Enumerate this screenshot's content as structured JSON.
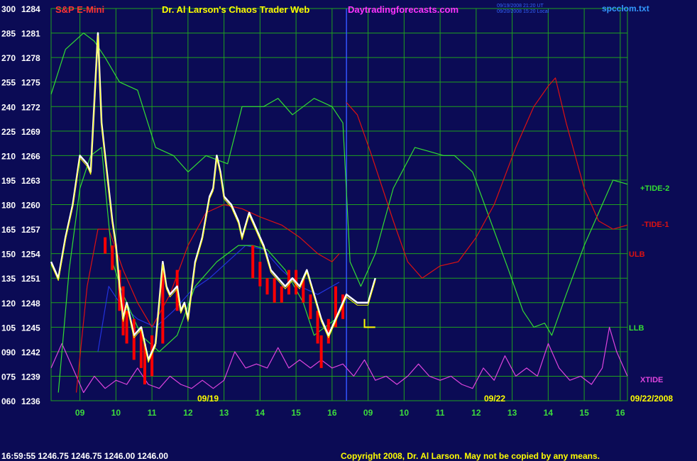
{
  "header": {
    "instrument": "S&P E-Mini",
    "title": "Dr. Al Larson's Chaos Trader Web",
    "site": "Daytradingforecasts.com",
    "filename": "spcclom.txt",
    "stamp1": "09/19/2008 21:20 UT",
    "stamp2": "09/20/2008 15:20 Local"
  },
  "colors": {
    "background": "#0b0b55",
    "grid": "#1fa01f",
    "price": "#ffffff",
    "red_bars": "#ff0000",
    "tide_plus": "#33dd33",
    "tide_minus": "#dd1111",
    "blue_line": "#2233dd",
    "xtide": "#dd44dd",
    "yellow": "#ffff00",
    "title": "#ffff00",
    "instrument": "#ff3333",
    "site": "#ff33ff",
    "filename": "#3399ff"
  },
  "status_bar": {
    "quote": "16:59:55  1246.75  1246.75  1246.00  1246.00",
    "copyright": "Copyright 2008, Dr. Al Larson. May not be copied by any means."
  },
  "chart_data": {
    "type": "line",
    "y_ticks": [
      {
        "left": "300",
        "right": "1284"
      },
      {
        "left": "285",
        "right": "1281"
      },
      {
        "left": "270",
        "right": "1278"
      },
      {
        "left": "255",
        "right": "1275"
      },
      {
        "left": "240",
        "right": "1272"
      },
      {
        "left": "225",
        "right": "1269"
      },
      {
        "left": "210",
        "right": "1266"
      },
      {
        "left": "195",
        "right": "1263"
      },
      {
        "left": "180",
        "right": "1260"
      },
      {
        "left": "165",
        "right": "1257"
      },
      {
        "left": "150",
        "right": "1254"
      },
      {
        "left": "135",
        "right": "1251"
      },
      {
        "left": "120",
        "right": "1248"
      },
      {
        "left": "105",
        "right": "1245"
      },
      {
        "left": "090",
        "right": "1242"
      },
      {
        "left": "075",
        "right": "1239"
      },
      {
        "left": "060",
        "right": "1236"
      }
    ],
    "ylim": [
      1236,
      1284
    ],
    "x_ticks": [
      "09",
      "10",
      "11",
      "12",
      "13",
      "14",
      "15",
      "16",
      "09",
      "10",
      "11",
      "12",
      "13",
      "14",
      "15",
      "16"
    ],
    "x_range": [
      0,
      16
    ],
    "date_labels": [
      "09/19",
      "09/22",
      "09/22/2008"
    ],
    "series_labels": {
      "tide_plus": "+TIDE-2",
      "tide_minus": "-TIDE-1",
      "ulb": "ULB",
      "llb": "LLB",
      "xtide": "XTIDE"
    },
    "series": {
      "tide_plus": [
        [
          0,
          1273.5
        ],
        [
          0.4,
          1279
        ],
        [
          0.9,
          1281
        ],
        [
          1.2,
          1280
        ],
        [
          1.5,
          1278
        ],
        [
          1.9,
          1275
        ],
        [
          2.4,
          1274
        ],
        [
          2.9,
          1267
        ],
        [
          3.4,
          1266
        ],
        [
          3.8,
          1264
        ],
        [
          4.3,
          1266
        ],
        [
          4.9,
          1265
        ],
        [
          5.3,
          1272
        ],
        [
          5.9,
          1272
        ],
        [
          6.3,
          1273
        ],
        [
          6.7,
          1271
        ],
        [
          7.3,
          1273
        ],
        [
          7.8,
          1272
        ],
        [
          8.1,
          1270
        ],
        [
          8.3,
          1253
        ],
        [
          8.6,
          1250
        ],
        [
          9.0,
          1254
        ],
        [
          9.5,
          1262
        ],
        [
          10.1,
          1267
        ],
        [
          10.5,
          1266.5
        ],
        [
          10.9,
          1266
        ],
        [
          11.2,
          1266
        ],
        [
          11.7,
          1264
        ],
        [
          12.2,
          1258
        ],
        [
          12.7,
          1252
        ],
        [
          13.1,
          1247
        ],
        [
          13.4,
          1245
        ],
        [
          13.7,
          1245.5
        ],
        [
          13.9,
          1244
        ],
        [
          14.3,
          1249
        ],
        [
          14.8,
          1255
        ],
        [
          15.3,
          1260
        ],
        [
          15.6,
          1263
        ],
        [
          16,
          1262.5
        ]
      ],
      "tide_minus": [
        [
          8.2,
          1272.5
        ],
        [
          8.5,
          1271
        ],
        [
          8.9,
          1266
        ],
        [
          9.5,
          1258
        ],
        [
          9.9,
          1253
        ],
        [
          10.3,
          1251
        ],
        [
          10.8,
          1252.5
        ],
        [
          11.3,
          1253
        ],
        [
          11.8,
          1256
        ],
        [
          12.3,
          1260
        ],
        [
          12.9,
          1267
        ],
        [
          13.4,
          1272
        ],
        [
          13.8,
          1274.5
        ],
        [
          14.0,
          1275.5
        ],
        [
          14.3,
          1270
        ],
        [
          14.8,
          1262
        ],
        [
          15.2,
          1258
        ],
        [
          15.6,
          1257
        ],
        [
          16,
          1257.5
        ]
      ],
      "llb": [
        [
          0.2,
          1237
        ],
        [
          0.5,
          1252
        ],
        [
          0.8,
          1262
        ],
        [
          1.1,
          1266
        ],
        [
          1.4,
          1267
        ],
        [
          1.7,
          1253
        ],
        [
          2.0,
          1249
        ],
        [
          2.5,
          1244
        ],
        [
          3.0,
          1242
        ],
        [
          3.5,
          1244
        ],
        [
          4.0,
          1250
        ],
        [
          4.6,
          1253
        ],
        [
          5.2,
          1255
        ],
        [
          5.6,
          1255
        ],
        [
          6.0,
          1254.5
        ],
        [
          6.5,
          1252
        ],
        [
          7.0,
          1248
        ],
        [
          7.3,
          1244
        ],
        [
          7.6,
          1245
        ],
        [
          7.9,
          1246
        ]
      ],
      "ulb": [
        [
          0.7,
          1237
        ],
        [
          1.0,
          1250
        ],
        [
          1.3,
          1257
        ],
        [
          1.6,
          1257
        ],
        [
          2.0,
          1252
        ],
        [
          2.4,
          1248
        ],
        [
          2.8,
          1245
        ],
        [
          3.3,
          1249
        ],
        [
          3.8,
          1255
        ],
        [
          4.3,
          1259
        ],
        [
          4.8,
          1260
        ],
        [
          5.3,
          1259.5
        ],
        [
          5.8,
          1258.5
        ],
        [
          6.4,
          1257.5
        ],
        [
          6.9,
          1256
        ],
        [
          7.4,
          1254
        ],
        [
          7.8,
          1253
        ],
        [
          8.0,
          1254
        ]
      ],
      "blue": [
        [
          1.3,
          1242
        ],
        [
          1.6,
          1250
        ],
        [
          1.9,
          1248
        ],
        [
          2.4,
          1246
        ],
        [
          2.9,
          1245
        ],
        [
          3.4,
          1247
        ],
        [
          3.9,
          1249.5
        ],
        [
          4.4,
          1251
        ],
        [
          4.9,
          1253
        ],
        [
          5.4,
          1255
        ],
        [
          5.9,
          1254.5
        ],
        [
          6.4,
          1252
        ],
        [
          6.9,
          1250
        ],
        [
          7.4,
          1249
        ],
        [
          7.8,
          1250
        ],
        [
          8.0,
          1250.5
        ]
      ],
      "price": [
        [
          0,
          1253
        ],
        [
          0.2,
          1251
        ],
        [
          0.4,
          1256
        ],
        [
          0.6,
          1260
        ],
        [
          0.8,
          1266
        ],
        [
          1.0,
          1265
        ],
        [
          1.1,
          1264
        ],
        [
          1.3,
          1281
        ],
        [
          1.4,
          1270
        ],
        [
          1.5,
          1266
        ],
        [
          1.6,
          1262
        ],
        [
          1.7,
          1258
        ],
        [
          1.8,
          1255
        ],
        [
          1.9,
          1250
        ],
        [
          2.0,
          1246
        ],
        [
          2.1,
          1248
        ],
        [
          2.3,
          1244
        ],
        [
          2.5,
          1245
        ],
        [
          2.7,
          1241
        ],
        [
          2.9,
          1243
        ],
        [
          3.0,
          1248
        ],
        [
          3.1,
          1253
        ],
        [
          3.2,
          1250
        ],
        [
          3.3,
          1249
        ],
        [
          3.5,
          1250
        ],
        [
          3.6,
          1247
        ],
        [
          3.7,
          1248
        ],
        [
          3.8,
          1246
        ],
        [
          4.0,
          1253
        ],
        [
          4.2,
          1256
        ],
        [
          4.4,
          1261
        ],
        [
          4.5,
          1262
        ],
        [
          4.6,
          1266
        ],
        [
          4.7,
          1264
        ],
        [
          4.8,
          1261
        ],
        [
          5.0,
          1260
        ],
        [
          5.2,
          1258
        ],
        [
          5.3,
          1256
        ],
        [
          5.5,
          1259
        ],
        [
          5.7,
          1257
        ],
        [
          5.8,
          1256
        ],
        [
          5.9,
          1255
        ],
        [
          6.1,
          1252
        ],
        [
          6.3,
          1251
        ],
        [
          6.5,
          1250
        ],
        [
          6.7,
          1251
        ],
        [
          6.9,
          1250
        ],
        [
          7.1,
          1252
        ],
        [
          7.3,
          1249
        ],
        [
          7.5,
          1246
        ],
        [
          7.7,
          1244
        ],
        [
          7.9,
          1246
        ],
        [
          8.0,
          1247
        ],
        [
          8.2,
          1249
        ],
        [
          8.5,
          1248
        ],
        [
          8.8,
          1248
        ],
        [
          9.0,
          1251
        ]
      ],
      "red_bars": [
        [
          1.5,
          1254,
          1256
        ],
        [
          1.7,
          1252,
          1255
        ],
        [
          1.9,
          1247,
          1252
        ],
        [
          2.0,
          1244,
          1250
        ],
        [
          2.1,
          1243,
          1247
        ],
        [
          2.3,
          1241,
          1246
        ],
        [
          2.5,
          1240,
          1245
        ],
        [
          2.6,
          1238,
          1243
        ],
        [
          2.8,
          1239,
          1244
        ],
        [
          3.1,
          1243,
          1252
        ],
        [
          3.5,
          1247,
          1252
        ],
        [
          5.6,
          1251,
          1255
        ],
        [
          5.8,
          1250,
          1253
        ],
        [
          6.0,
          1249,
          1251
        ],
        [
          6.2,
          1248,
          1251
        ],
        [
          6.4,
          1248,
          1250
        ],
        [
          6.6,
          1249,
          1252
        ],
        [
          6.8,
          1249,
          1252
        ],
        [
          7.0,
          1248,
          1251
        ],
        [
          7.2,
          1246,
          1249
        ],
        [
          7.4,
          1243,
          1247
        ],
        [
          7.5,
          1240,
          1244
        ],
        [
          7.7,
          1243,
          1246
        ],
        [
          7.9,
          1245,
          1250
        ],
        [
          8.1,
          1246,
          1249
        ]
      ],
      "xtide": [
        [
          0,
          1240
        ],
        [
          0.3,
          1243
        ],
        [
          0.6,
          1240
        ],
        [
          0.9,
          1237
        ],
        [
          1.2,
          1239
        ],
        [
          1.5,
          1237.5
        ],
        [
          1.8,
          1238.5
        ],
        [
          2.1,
          1238
        ],
        [
          2.4,
          1240
        ],
        [
          2.7,
          1238
        ],
        [
          3.0,
          1237.5
        ],
        [
          3.3,
          1239
        ],
        [
          3.6,
          1238
        ],
        [
          3.9,
          1237.5
        ],
        [
          4.2,
          1238.5
        ],
        [
          4.5,
          1237.5
        ],
        [
          4.8,
          1238.5
        ],
        [
          5.1,
          1242
        ],
        [
          5.4,
          1240
        ],
        [
          5.7,
          1240.5
        ],
        [
          6.0,
          1240
        ],
        [
          6.3,
          1242.5
        ],
        [
          6.6,
          1240
        ],
        [
          6.9,
          1241
        ],
        [
          7.2,
          1240
        ],
        [
          7.5,
          1241
        ],
        [
          7.8,
          1240
        ],
        [
          8.1,
          1240.5
        ],
        [
          8.4,
          1239
        ],
        [
          8.7,
          1241
        ],
        [
          9.0,
          1238.5
        ],
        [
          9.3,
          1239
        ],
        [
          9.6,
          1238
        ],
        [
          9.9,
          1239
        ],
        [
          10.2,
          1240.5
        ],
        [
          10.5,
          1239
        ],
        [
          10.8,
          1238.5
        ],
        [
          11.1,
          1239
        ],
        [
          11.4,
          1238
        ],
        [
          11.7,
          1237.5
        ],
        [
          12.0,
          1240
        ],
        [
          12.3,
          1238.5
        ],
        [
          12.6,
          1241.5
        ],
        [
          12.9,
          1239
        ],
        [
          13.2,
          1240
        ],
        [
          13.5,
          1239
        ],
        [
          13.8,
          1243
        ],
        [
          14.1,
          1240
        ],
        [
          14.4,
          1238.5
        ],
        [
          14.7,
          1239
        ],
        [
          15.0,
          1238
        ],
        [
          15.3,
          1240
        ],
        [
          15.5,
          1245
        ],
        [
          15.7,
          1242
        ],
        [
          16,
          1239
        ]
      ],
      "yellow_marker": {
        "x": 8.7,
        "y_top": 1246,
        "y_bottom": 1245,
        "x_end": 9.0
      }
    }
  }
}
